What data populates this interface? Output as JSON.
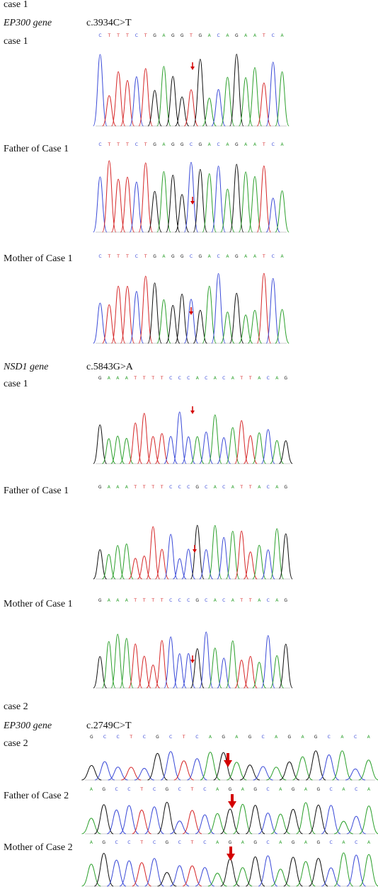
{
  "sections": [
    {
      "title": "case 1",
      "genes": [
        {
          "gene": "EP300 gene",
          "variant": "c.3934C>T",
          "panels": [
            {
              "label": "case 1",
              "sequence": [
                "C",
                "T",
                "T",
                "T",
                "C",
                "T",
                "G",
                "A",
                "G",
                "G",
                "T",
                "G",
                "A",
                "C",
                "A",
                "G",
                "A",
                "A",
                "T",
                "C",
                "A"
              ]
            },
            {
              "label": "Father of Case 1",
              "sequence": [
                "C",
                "T",
                "T",
                "T",
                "C",
                "T",
                "G",
                "A",
                "G",
                "G",
                "C",
                "G",
                "A",
                "C",
                "A",
                "G",
                "A",
                "A",
                "T",
                "C",
                "A"
              ]
            },
            {
              "label": "Mother of Case 1",
              "sequence": [
                "C",
                "T",
                "T",
                "T",
                "C",
                "T",
                "G",
                "A",
                "G",
                "G",
                "C",
                "G",
                "A",
                "C",
                "A",
                "G",
                "A",
                "A",
                "T",
                "C",
                "A"
              ]
            }
          ]
        },
        {
          "gene": "NSD1 gene",
          "variant": "c.5843G>A",
          "panels": [
            {
              "label": "case 1",
              "sequence": [
                "G",
                "A",
                "A",
                "A",
                "T",
                "T",
                "T",
                "T",
                "C",
                "C",
                "C",
                "A",
                "C",
                "A",
                "C",
                "A",
                "T",
                "T",
                "A",
                "C",
                "A",
                "G"
              ]
            },
            {
              "label": "Father of Case 1",
              "sequence": [
                "G",
                "A",
                "A",
                "A",
                "T",
                "T",
                "T",
                "T",
                "C",
                "C",
                "C",
                "G",
                "C",
                "A",
                "C",
                "A",
                "T",
                "T",
                "A",
                "C",
                "A",
                "G"
              ]
            },
            {
              "label": "Mother of Case 1",
              "sequence": [
                "G",
                "A",
                "A",
                "A",
                "T",
                "T",
                "T",
                "T",
                "C",
                "C",
                "C",
                "G",
                "C",
                "A",
                "C",
                "A",
                "T",
                "T",
                "A",
                "C",
                "A",
                "G"
              ]
            }
          ]
        }
      ]
    },
    {
      "title": "case 2",
      "genes": [
        {
          "gene": "EP300 gene",
          "variant": "c.2749C>T",
          "panels": [
            {
              "label": "case 2",
              "sequence": [
                "G",
                "C",
                "C",
                "T",
                "C",
                "G",
                "C",
                "T",
                "C",
                "A",
                "G",
                "A",
                "G",
                "C",
                "A",
                "G",
                "A",
                "G",
                "C",
                "A",
                "C",
                "A"
              ]
            },
            {
              "label": "Father of Case 2",
              "sequence": [
                "A",
                "G",
                "C",
                "C",
                "T",
                "C",
                "G",
                "C",
                "T",
                "C",
                "A",
                "G",
                "A",
                "G",
                "C",
                "A",
                "G",
                "A",
                "G",
                "C",
                "A",
                "C",
                "A"
              ]
            },
            {
              "label": "Mother of Case 2",
              "sequence": [
                "A",
                "G",
                "C",
                "C",
                "T",
                "C",
                "G",
                "C",
                "T",
                "C",
                "A",
                "G",
                "A",
                "G",
                "C",
                "A",
                "G",
                "A",
                "G",
                "C",
                "A",
                "C",
                "A"
              ]
            }
          ]
        }
      ]
    }
  ]
}
